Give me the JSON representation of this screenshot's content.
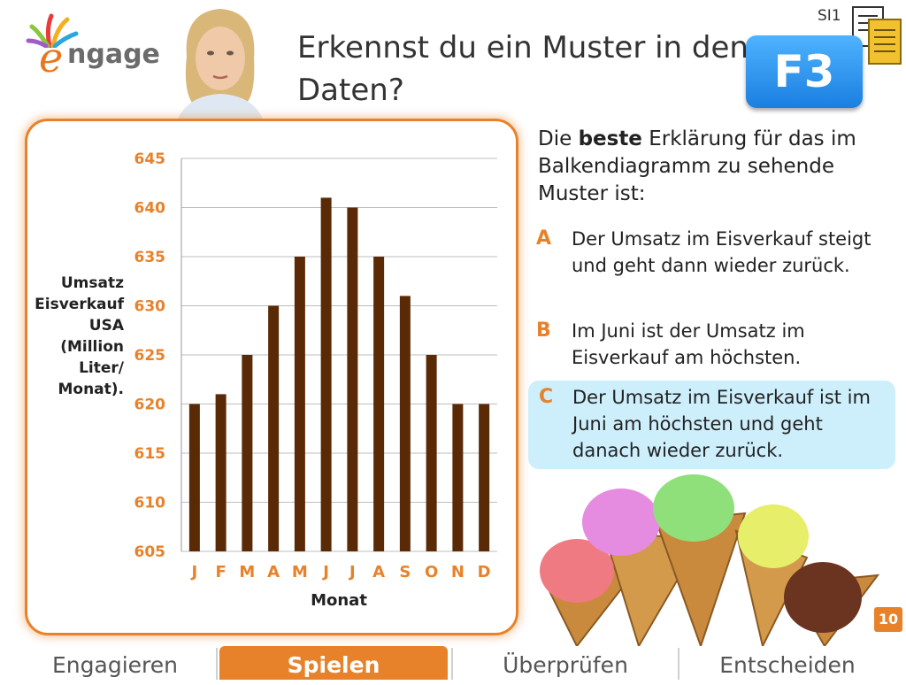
{
  "header": {
    "title": "Erkennst du ein Muster in den Daten?",
    "badge": "F3",
    "level": "SI1",
    "logo_text": "ngage"
  },
  "chart_data": {
    "type": "bar",
    "categories": [
      "J",
      "F",
      "M",
      "A",
      "M",
      "J",
      "J",
      "A",
      "S",
      "O",
      "N",
      "D"
    ],
    "values": [
      620,
      621,
      625,
      630,
      635,
      641,
      640,
      635,
      631,
      625,
      620,
      620
    ],
    "xlabel": "Monat",
    "ylabel": "Umsatz Eisverkauf USA (Million Liter/ Monat).",
    "ylim": [
      605,
      645
    ],
    "yticks": [
      645,
      640,
      635,
      630,
      625,
      620,
      615,
      610,
      605
    ],
    "grid": true,
    "bar_color": "#5a2a06",
    "tick_color": "#e8822a"
  },
  "question": {
    "intro_before": "Die ",
    "intro_bold": "beste",
    "intro_after": " Erklärung für das im Balkendiagramm zu sehende Muster ist:",
    "options": [
      {
        "letter": "A",
        "text": "Der Umsatz im Eisverkauf steigt und geht dann wieder zurück."
      },
      {
        "letter": "B",
        "text": "Im Juni ist der Umsatz im Eisverkauf am höchsten."
      },
      {
        "letter": "C",
        "text": "Der Umsatz im Eisverkauf ist im Juni am höchsten und geht danach wieder zurück."
      }
    ]
  },
  "page_number": "10",
  "nav": {
    "tabs": [
      "Engagieren",
      "Spielen",
      "Überprüfen",
      "Entscheiden"
    ],
    "active": "Spielen"
  },
  "colors": {
    "accent": "#e8822a",
    "badge_blue": "#1a7fe0",
    "highlight": "#cdeefb"
  }
}
